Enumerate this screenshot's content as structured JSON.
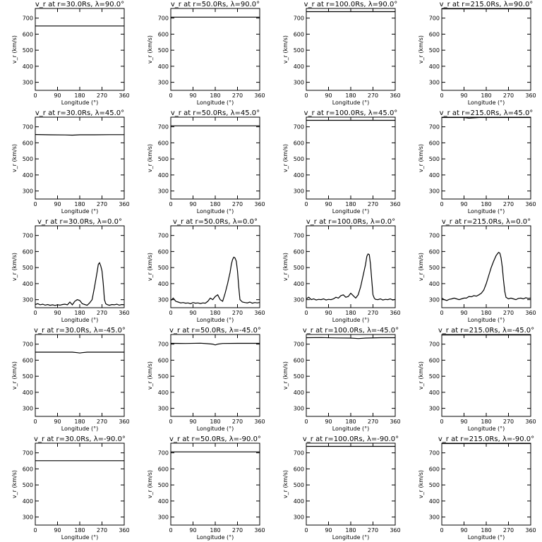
{
  "figure": {
    "xlabel": "Longitude (°)",
    "ylabel": "v_r (km/s)"
  },
  "chart_data": [
    {
      "type": "line",
      "title": "v_r at r=30.0Rs, λ=90.0°",
      "xlim": [
        0,
        360
      ],
      "ylim": [
        250,
        760
      ],
      "xticks": [
        0,
        90,
        180,
        270,
        360
      ],
      "yticks": [
        300,
        400,
        500,
        600,
        700
      ],
      "series": [
        {
          "x": [
            0,
            360
          ],
          "y": [
            651,
            651
          ]
        }
      ]
    },
    {
      "type": "line",
      "title": "v_r at r=50.0Rs, λ=90.0°",
      "xlim": [
        0,
        360
      ],
      "ylim": [
        250,
        760
      ],
      "xticks": [
        0,
        90,
        180,
        270,
        360
      ],
      "yticks": [
        300,
        400,
        500,
        600,
        700
      ],
      "series": [
        {
          "x": [
            0,
            360
          ],
          "y": [
            706,
            706
          ]
        }
      ]
    },
    {
      "type": "line",
      "title": "v_r at r=100.0Rs, λ=90.0°",
      "xlim": [
        0,
        360
      ],
      "ylim": [
        250,
        760
      ],
      "xticks": [
        0,
        90,
        180,
        270,
        360
      ],
      "yticks": [
        300,
        400,
        500,
        600,
        700
      ],
      "series": [
        {
          "x": [
            0,
            360
          ],
          "y": [
            740,
            740
          ]
        }
      ]
    },
    {
      "type": "line",
      "title": "v_r at r=215.0Rs, λ=90.0°",
      "xlim": [
        0,
        360
      ],
      "ylim": [
        250,
        760
      ],
      "xticks": [
        0,
        90,
        180,
        270,
        360
      ],
      "yticks": [
        300,
        400,
        500,
        600,
        700
      ],
      "series": [
        {
          "x": [
            0,
            360
          ],
          "y": [
            758,
            758
          ]
        }
      ]
    },
    {
      "type": "line",
      "title": "v_r at r=30.0Rs, λ=45.0°",
      "xlim": [
        0,
        360
      ],
      "ylim": [
        250,
        760
      ],
      "xticks": [
        0,
        90,
        180,
        270,
        360
      ],
      "yticks": [
        300,
        400,
        500,
        600,
        700
      ],
      "series": [
        {
          "x": [
            0,
            60,
            120,
            150,
            180,
            240,
            300,
            360
          ],
          "y": [
            652,
            650,
            649,
            648,
            650,
            650,
            651,
            651
          ]
        }
      ]
    },
    {
      "type": "line",
      "title": "v_r at r=50.0Rs, λ=45.0°",
      "xlim": [
        0,
        360
      ],
      "ylim": [
        250,
        760
      ],
      "xticks": [
        0,
        90,
        180,
        270,
        360
      ],
      "yticks": [
        300,
        400,
        500,
        600,
        700
      ],
      "series": [
        {
          "x": [
            0,
            360
          ],
          "y": [
            706,
            706
          ]
        }
      ]
    },
    {
      "type": "line",
      "title": "v_r at r=100.0Rs, λ=45.0°",
      "xlim": [
        0,
        360
      ],
      "ylim": [
        250,
        760
      ],
      "xticks": [
        0,
        90,
        180,
        270,
        360
      ],
      "yticks": [
        300,
        400,
        500,
        600,
        700
      ],
      "series": [
        {
          "x": [
            0,
            360
          ],
          "y": [
            740,
            740
          ]
        }
      ]
    },
    {
      "type": "line",
      "title": "v_r at r=215.0Rs, λ=45.0°",
      "xlim": [
        0,
        360
      ],
      "ylim": [
        250,
        760
      ],
      "xticks": [
        0,
        90,
        180,
        270,
        360
      ],
      "yticks": [
        300,
        400,
        500,
        600,
        700
      ],
      "series": [
        {
          "x": [
            0,
            90,
            110,
            150,
            360
          ],
          "y": [
            758,
            758,
            754,
            758,
            758
          ]
        }
      ]
    },
    {
      "type": "line",
      "title": "v_r at r=30.0Rs, λ=0.0°",
      "xlim": [
        0,
        360
      ],
      "ylim": [
        250,
        760
      ],
      "xticks": [
        0,
        90,
        180,
        270,
        360
      ],
      "yticks": [
        300,
        400,
        500,
        600,
        700
      ],
      "series": [
        {
          "x": [
            0,
            10,
            20,
            30,
            40,
            50,
            60,
            70,
            80,
            90,
            100,
            110,
            120,
            130,
            140,
            150,
            160,
            170,
            180,
            190,
            200,
            210,
            220,
            230,
            240,
            250,
            255,
            260,
            265,
            270,
            275,
            280,
            285,
            290,
            300,
            310,
            320,
            330,
            340,
            350,
            360
          ],
          "y": [
            270,
            275,
            268,
            272,
            266,
            270,
            265,
            268,
            264,
            268,
            266,
            270,
            272,
            268,
            285,
            268,
            290,
            300,
            295,
            275,
            270,
            265,
            280,
            300,
            380,
            470,
            520,
            530,
            510,
            480,
            400,
            300,
            275,
            270,
            265,
            270,
            268,
            272,
            266,
            270,
            268
          ]
        }
      ]
    },
    {
      "type": "line",
      "title": "v_r at r=50.0Rs, λ=0.0°",
      "xlim": [
        0,
        360
      ],
      "ylim": [
        250,
        760
      ],
      "xticks": [
        0,
        90,
        180,
        270,
        360
      ],
      "yticks": [
        300,
        400,
        500,
        600,
        700
      ],
      "series": [
        {
          "x": [
            0,
            10,
            20,
            30,
            40,
            50,
            60,
            70,
            80,
            90,
            100,
            110,
            120,
            130,
            140,
            150,
            160,
            170,
            180,
            190,
            200,
            210,
            220,
            230,
            240,
            245,
            250,
            255,
            260,
            265,
            270,
            275,
            280,
            290,
            300,
            310,
            320,
            330,
            340,
            350,
            360
          ],
          "y": [
            295,
            310,
            290,
            285,
            280,
            282,
            278,
            280,
            275,
            282,
            278,
            280,
            276,
            280,
            278,
            290,
            310,
            300,
            320,
            330,
            300,
            290,
            340,
            400,
            470,
            520,
            550,
            565,
            560,
            540,
            480,
            380,
            300,
            285,
            282,
            280,
            285,
            278,
            282,
            280,
            282
          ]
        }
      ]
    },
    {
      "type": "line",
      "title": "v_r at r=100.0Rs, λ=0.0°",
      "xlim": [
        0,
        360
      ],
      "ylim": [
        250,
        760
      ],
      "xticks": [
        0,
        90,
        180,
        270,
        360
      ],
      "yticks": [
        300,
        400,
        500,
        600,
        700
      ],
      "series": [
        {
          "x": [
            0,
            10,
            20,
            30,
            40,
            50,
            60,
            70,
            80,
            90,
            100,
            110,
            120,
            130,
            140,
            150,
            160,
            170,
            180,
            190,
            200,
            210,
            220,
            230,
            240,
            245,
            250,
            255,
            260,
            265,
            270,
            275,
            280,
            290,
            300,
            310,
            320,
            330,
            340,
            350,
            360
          ],
          "y": [
            305,
            315,
            300,
            305,
            298,
            302,
            300,
            305,
            298,
            302,
            300,
            305,
            315,
            310,
            325,
            330,
            315,
            320,
            340,
            325,
            310,
            330,
            380,
            450,
            520,
            570,
            585,
            580,
            520,
            420,
            330,
            310,
            302,
            300,
            305,
            298,
            302,
            300,
            305,
            298,
            302
          ]
        }
      ]
    },
    {
      "type": "line",
      "title": "v_r at r=215.0Rs, λ=0.0°",
      "xlim": [
        0,
        360
      ],
      "ylim": [
        250,
        760
      ],
      "xticks": [
        0,
        90,
        180,
        270,
        360
      ],
      "yticks": [
        300,
        400,
        500,
        600,
        700
      ],
      "series": [
        {
          "x": [
            0,
            10,
            20,
            30,
            40,
            50,
            60,
            70,
            80,
            90,
            100,
            110,
            120,
            130,
            140,
            150,
            160,
            170,
            180,
            190,
            200,
            210,
            220,
            230,
            235,
            240,
            245,
            250,
            255,
            260,
            270,
            280,
            290,
            300,
            310,
            320,
            330,
            340,
            350,
            360
          ],
          "y": [
            310,
            300,
            295,
            302,
            305,
            310,
            305,
            300,
            305,
            310,
            310,
            320,
            318,
            325,
            322,
            330,
            340,
            360,
            400,
            450,
            500,
            540,
            575,
            595,
            590,
            560,
            500,
            420,
            350,
            315,
            305,
            310,
            305,
            300,
            308,
            310,
            305,
            312,
            308,
            310
          ]
        }
      ]
    },
    {
      "type": "line",
      "title": "v_r at r=30.0Rs, λ=-45.0°",
      "xlim": [
        0,
        360
      ],
      "ylim": [
        250,
        760
      ],
      "xticks": [
        0,
        90,
        180,
        270,
        360
      ],
      "yticks": [
        300,
        400,
        500,
        600,
        700
      ],
      "series": [
        {
          "x": [
            0,
            150,
            170,
            180,
            190,
            210,
            360
          ],
          "y": [
            650,
            650,
            647,
            645,
            647,
            650,
            650
          ]
        }
      ]
    },
    {
      "type": "line",
      "title": "v_r at r=50.0Rs, λ=-45.0°",
      "xlim": [
        0,
        360
      ],
      "ylim": [
        250,
        760
      ],
      "xticks": [
        0,
        90,
        180,
        270,
        360
      ],
      "yticks": [
        300,
        400,
        500,
        600,
        700
      ],
      "series": [
        {
          "x": [
            0,
            60,
            120,
            150,
            170,
            180,
            190,
            210,
            270,
            360
          ],
          "y": [
            705,
            704,
            706,
            703,
            700,
            695,
            700,
            704,
            705,
            705
          ]
        }
      ]
    },
    {
      "type": "line",
      "title": "v_r at r=100.0Rs, λ=-45.0°",
      "xlim": [
        0,
        360
      ],
      "ylim": [
        250,
        760
      ],
      "xticks": [
        0,
        90,
        180,
        270,
        360
      ],
      "yticks": [
        300,
        400,
        500,
        600,
        700
      ],
      "series": [
        {
          "x": [
            0,
            60,
            120,
            180,
            210,
            240,
            300,
            360
          ],
          "y": [
            740,
            741,
            739,
            738,
            735,
            738,
            740,
            740
          ]
        }
      ]
    },
    {
      "type": "line",
      "title": "v_r at r=215.0Rs, λ=-45.0°",
      "xlim": [
        0,
        360
      ],
      "ylim": [
        250,
        760
      ],
      "xticks": [
        0,
        90,
        180,
        270,
        360
      ],
      "yticks": [
        300,
        400,
        500,
        600,
        700
      ],
      "series": [
        {
          "x": [
            0,
            360
          ],
          "y": [
            757,
            757
          ]
        }
      ]
    },
    {
      "type": "line",
      "title": "v_r at r=30.0Rs, λ=-90.0°",
      "xlim": [
        0,
        360
      ],
      "ylim": [
        250,
        760
      ],
      "xticks": [
        0,
        90,
        180,
        270,
        360
      ],
      "yticks": [
        300,
        400,
        500,
        600,
        700
      ],
      "series": [
        {
          "x": [
            0,
            360
          ],
          "y": [
            651,
            651
          ]
        }
      ]
    },
    {
      "type": "line",
      "title": "v_r at r=50.0Rs, λ=-90.0°",
      "xlim": [
        0,
        360
      ],
      "ylim": [
        250,
        760
      ],
      "xticks": [
        0,
        90,
        180,
        270,
        360
      ],
      "yticks": [
        300,
        400,
        500,
        600,
        700
      ],
      "series": [
        {
          "x": [
            0,
            360
          ],
          "y": [
            706,
            706
          ]
        }
      ]
    },
    {
      "type": "line",
      "title": "v_r at r=100.0Rs, λ=-90.0°",
      "xlim": [
        0,
        360
      ],
      "ylim": [
        250,
        760
      ],
      "xticks": [
        0,
        90,
        180,
        270,
        360
      ],
      "yticks": [
        300,
        400,
        500,
        600,
        700
      ],
      "series": [
        {
          "x": [
            0,
            360
          ],
          "y": [
            740,
            740
          ]
        }
      ]
    },
    {
      "type": "line",
      "title": "v_r at r=215.0Rs, λ=-90.0°",
      "xlim": [
        0,
        360
      ],
      "ylim": [
        250,
        760
      ],
      "xticks": [
        0,
        90,
        180,
        270,
        360
      ],
      "yticks": [
        300,
        400,
        500,
        600,
        700
      ],
      "series": [
        {
          "x": [
            0,
            360
          ],
          "y": [
            758,
            758
          ]
        }
      ]
    }
  ]
}
